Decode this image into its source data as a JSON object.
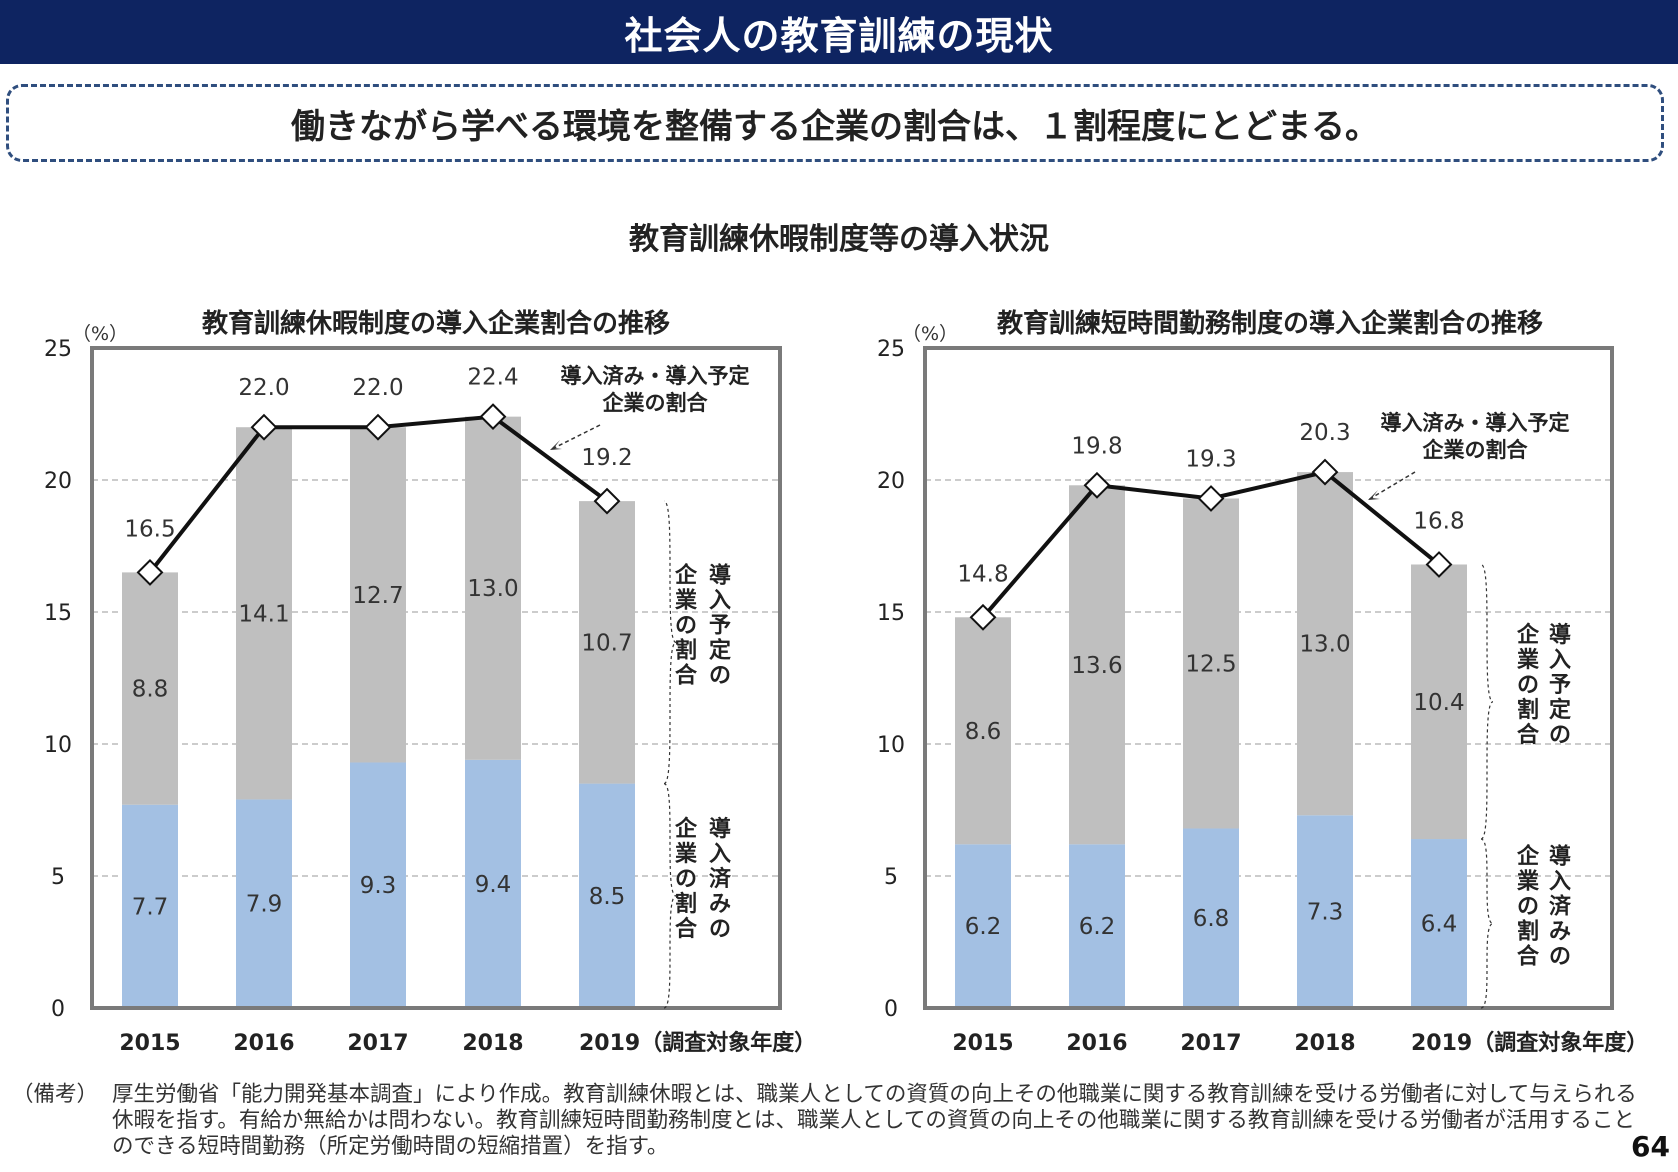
{
  "header": {
    "title": "社会人の教育訓練の現状",
    "headline": "働きながら学べる環境を整備する企業の割合は、１割程度にとどまる。",
    "section_title": "教育訓練休暇制度等の導入状況"
  },
  "chart_data": [
    {
      "type": "bar",
      "stacked": true,
      "title": "教育訓練休暇制度の導入企業割合の推移",
      "unit": "（%）",
      "categories": [
        "2015",
        "2016",
        "2017",
        "2018",
        "2019（調査対象年度）"
      ],
      "series": [
        {
          "name": "導入済みの企業の割合",
          "values": [
            7.7,
            7.9,
            9.3,
            9.4,
            8.5
          ],
          "color": "#a3c0e3"
        },
        {
          "name": "導入予定の企業の割合",
          "values": [
            8.8,
            14.1,
            12.7,
            13.0,
            10.7
          ],
          "color": "#bfbfbf"
        }
      ],
      "line": {
        "name": "導入済み・導入予定\n企業の割合",
        "values": [
          16.5,
          22.0,
          22.0,
          22.4,
          19.2
        ]
      },
      "line_labels": [
        "16.5",
        "22.0",
        "22.0",
        "22.4",
        "19.2"
      ],
      "implemented_labels": [
        "7.7",
        "7.9",
        "9.3",
        "9.4",
        "8.5"
      ],
      "planned_labels": [
        "8.8",
        "14.1",
        "12.7",
        "13.0",
        "10.7"
      ],
      "ylim": [
        0,
        25
      ],
      "yticks": [
        "0",
        "5",
        "10",
        "15",
        "20",
        "25"
      ],
      "brace_label_planned": "導入予定の企業の割合",
      "brace_label_implemented": "導入済みの企業の割合",
      "line_annotation": [
        "導入済み・導入予定",
        "企業の割合"
      ]
    },
    {
      "type": "bar",
      "stacked": true,
      "title": "教育訓練短時間勤務制度の導入企業割合の推移",
      "unit": "（%）",
      "categories": [
        "2015",
        "2016",
        "2017",
        "2018",
        "2019（調査対象年度）"
      ],
      "series": [
        {
          "name": "導入済みの企業の割合",
          "values": [
            6.2,
            6.2,
            6.8,
            7.3,
            6.4
          ],
          "color": "#a3c0e3"
        },
        {
          "name": "導入予定の企業の割合",
          "values": [
            8.6,
            13.6,
            12.5,
            13.0,
            10.4
          ],
          "color": "#bfbfbf"
        }
      ],
      "line": {
        "name": "導入済み・導入予定\n企業の割合",
        "values": [
          14.8,
          19.8,
          19.3,
          20.3,
          16.8
        ]
      },
      "line_labels": [
        "14.8",
        "19.8",
        "19.3",
        "20.3",
        "16.8"
      ],
      "implemented_labels": [
        "6.2",
        "6.2",
        "6.8",
        "7.3",
        "6.4"
      ],
      "planned_labels": [
        "8.6",
        "13.6",
        "12.5",
        "13.0",
        "10.4"
      ],
      "ylim": [
        0,
        25
      ],
      "yticks": [
        "0",
        "5",
        "10",
        "15",
        "20",
        "25"
      ],
      "brace_label_planned": "導入予定の企業の割合",
      "brace_label_implemented": "導入済みの企業の割合",
      "line_annotation": [
        "導入済み・導入予定",
        "企業の割合"
      ]
    }
  ],
  "footnote": {
    "label": "（備考）",
    "text": "厚生労働省「能力開発基本調査」により作成。教育訓練休暇とは、職業人としての資質の向上その他職業に関する教育訓練を受ける労働者に対して与えられる休暇を指す。有給か無給かは問わない。教育訓練短時間勤務制度とは、職業人としての資質の向上その他職業に関する教育訓練を受ける労働者が活用することのできる短時間勤務（所定労働時間の短縮措置）を指す。"
  },
  "page_number": "64"
}
